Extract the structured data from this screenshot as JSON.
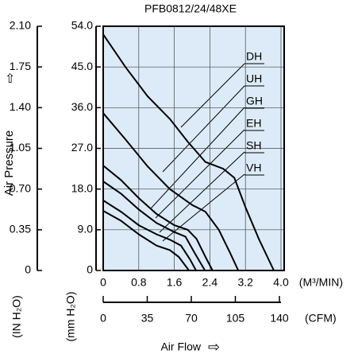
{
  "chart_data": {
    "type": "line",
    "title": "PFB0812/24/48XE",
    "y_label": "Air Pressure",
    "y_unit": "(mm H₂O)",
    "y2_unit": "(IN H₂O)",
    "x_label": "Air Flow",
    "x_unit": "(M³/MIN)",
    "x2_unit": "(CFM)",
    "xlim": [
      0,
      4.0
    ],
    "xticks": [
      0,
      0.8,
      1.6,
      2.4,
      3.2,
      {
        "value": 4.0,
        "label": "4.0"
      }
    ],
    "x2lim": [
      0,
      141.26
    ],
    "x2ticks": [
      0,
      35,
      70,
      105,
      140
    ],
    "ylim": [
      0,
      54.0
    ],
    "yticks": [
      0,
      {
        "value": 9,
        "label": "9.0"
      },
      {
        "value": 18,
        "label": "18.0"
      },
      {
        "value": 27,
        "label": "27.0"
      },
      {
        "value": 36,
        "label": "36.0"
      },
      {
        "value": 45,
        "label": "45.0"
      },
      {
        "value": 54,
        "label": "54.0"
      }
    ],
    "y2lim": [
      0,
      2.1
    ],
    "y2ticks": [
      0,
      0.35,
      {
        "value": 0.7,
        "label": "0.70"
      },
      1.05,
      {
        "value": 1.4,
        "label": "1.40"
      },
      1.75,
      {
        "value": 2.1,
        "label": "2.10"
      }
    ],
    "grid": true,
    "color": "#000000",
    "background": "#dcebf7",
    "series": [
      {
        "name": "DH",
        "x": [
          0,
          0.5,
          1.0,
          1.5,
          1.9,
          2.3,
          2.7,
          2.95,
          3.2,
          3.5,
          3.84
        ],
        "values": [
          52.2,
          45,
          38.5,
          33.5,
          28.5,
          24,
          22.5,
          20.5,
          14,
          7,
          0
        ]
      },
      {
        "name": "UH",
        "x": [
          0,
          0.5,
          1.0,
          1.5,
          2.0,
          2.3,
          2.6,
          2.85,
          3.04
        ],
        "values": [
          34.8,
          29,
          23,
          18,
          14.5,
          13,
          9,
          4,
          0
        ]
      },
      {
        "name": "GH",
        "x": [
          0,
          0.4,
          0.8,
          1.2,
          1.6,
          1.9,
          2.1,
          2.3,
          2.46
        ],
        "values": [
          23.2,
          20,
          16,
          12.5,
          10,
          9,
          7,
          3,
          0
        ]
      },
      {
        "name": "EH",
        "x": [
          0,
          0.4,
          0.8,
          1.2,
          1.6,
          1.85,
          2.05,
          2.29
        ],
        "values": [
          19.7,
          17,
          13.5,
          10.5,
          8.5,
          7.5,
          4,
          0
        ]
      },
      {
        "name": "SH",
        "x": [
          0,
          0.4,
          0.8,
          1.2,
          1.5,
          1.75,
          1.95,
          2.09
        ],
        "values": [
          15.5,
          13,
          10,
          8,
          6.8,
          5.5,
          2.5,
          0
        ]
      },
      {
        "name": "VH",
        "x": [
          0,
          0.4,
          0.8,
          1.2,
          1.5,
          1.7,
          1.93
        ],
        "values": [
          13.2,
          11,
          8,
          5.5,
          4.5,
          3,
          0
        ]
      }
    ]
  }
}
